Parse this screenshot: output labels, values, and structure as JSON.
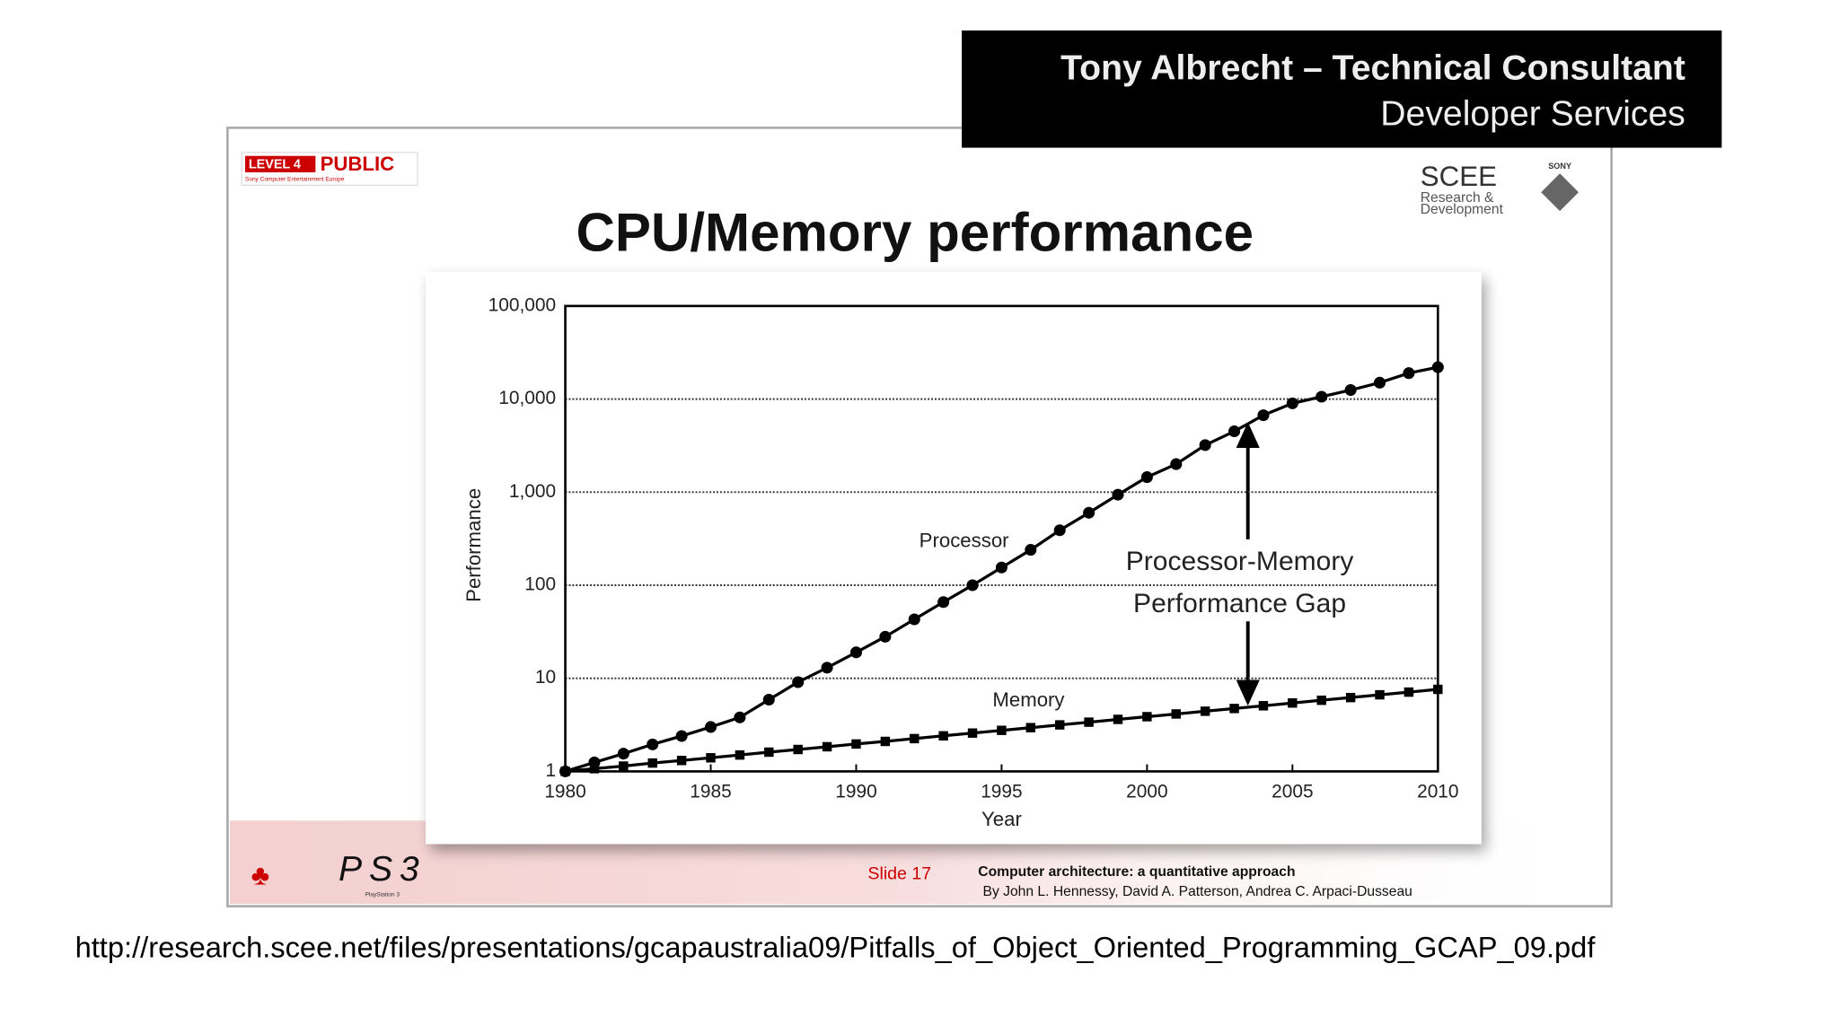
{
  "slide": {
    "header_name": "Tony Albrecht – Technical Consultant",
    "header_role": "Developer Services",
    "badge_level": "LEVEL 4",
    "badge_public": "PUBLIC",
    "badge_sub": "Sony Computer Entertainment Europe",
    "logo_scee": "SCEE",
    "logo_rd_1": "Research &",
    "logo_rd_2": "Development",
    "logo_sony": "SONY",
    "ps3": "PS3",
    "ps3_sub": "PlayStation 3",
    "slide_number": "Slide 17",
    "citation_title": "Computer architecture: a quantitative approach",
    "citation_authors": "By John L. Hennessy, David A. Patterson, Andrea C. Arpaci-Dusseau",
    "url": "http://research.scee.net/files/presentations/gcapaustralia09/Pitfalls_of_Object_Oriented_Programming_GCAP_09.pdf"
  },
  "chart_data": {
    "type": "line",
    "title": "CPU/Memory performance",
    "x_label": "Year",
    "y_label": "Performance",
    "y_log": true,
    "grid": true,
    "grid_style": "dotted",
    "annotations": [
      "Processor",
      "Memory",
      "Processor-Memory",
      "Performance Gap"
    ],
    "x": [
      1980,
      1981,
      1982,
      1983,
      1984,
      1985,
      1986,
      1987,
      1988,
      1989,
      1990,
      1991,
      1992,
      1993,
      1994,
      1995,
      1996,
      1997,
      1998,
      1999,
      2000,
      2001,
      2002,
      2003,
      2004,
      2005,
      2006,
      2007,
      2008,
      2009,
      2010
    ],
    "series": [
      {
        "name": "Processor",
        "color": "#000000",
        "marker": "circle",
        "values": [
          1,
          1.25,
          1.55,
          1.95,
          2.4,
          3,
          3.8,
          5.9,
          9.1,
          13,
          19,
          28,
          43,
          66,
          100,
          155,
          240,
          390,
          600,
          940,
          1450,
          2000,
          3200,
          4500,
          6700,
          9000,
          10600,
          12500,
          15000,
          19000,
          22000
        ]
      },
      {
        "name": "Memory",
        "color": "#000000",
        "marker": "square",
        "values": [
          1,
          1.07,
          1.14,
          1.23,
          1.31,
          1.4,
          1.5,
          1.61,
          1.72,
          1.84,
          1.97,
          2.1,
          2.25,
          2.41,
          2.58,
          2.76,
          2.95,
          3.16,
          3.38,
          3.62,
          3.87,
          4.14,
          4.43,
          4.74,
          5.07,
          5.43,
          5.81,
          6.21,
          6.65,
          7.11,
          7.61
        ]
      }
    ],
    "xlim": [
      1980,
      2010
    ],
    "xticks": [
      1980,
      1985,
      1990,
      1995,
      2000,
      2005,
      2010
    ],
    "ylim": [
      1,
      100000
    ],
    "yticks": [
      1,
      10,
      100,
      {
        "value": 1000,
        "label": "1,000"
      },
      {
        "value": 10000,
        "label": "10,000"
      },
      {
        "value": 100000,
        "label": "100,000"
      }
    ]
  }
}
